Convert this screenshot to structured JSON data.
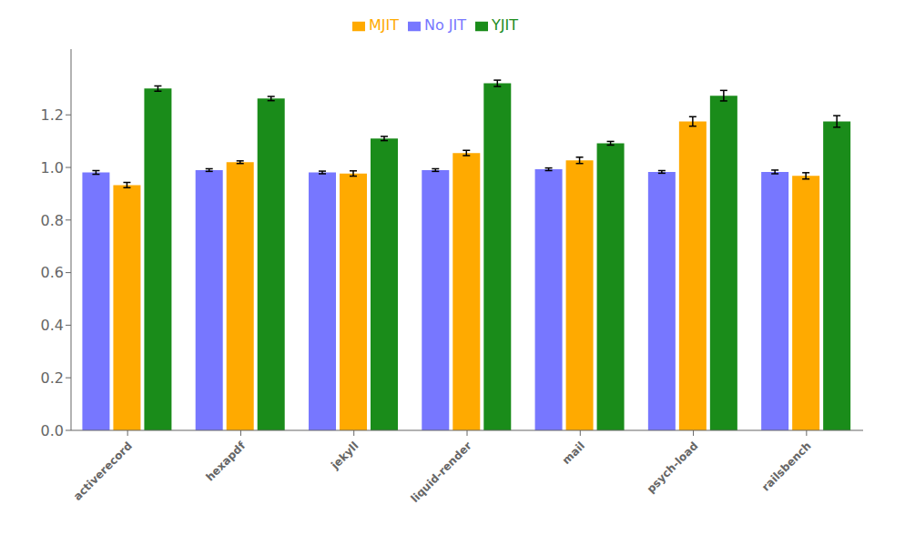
{
  "chart_data": {
    "type": "bar",
    "categories": [
      "activerecord",
      "hexapdf",
      "jekyll",
      "liquid-render",
      "mail",
      "psych-load",
      "railsbench"
    ],
    "series": [
      {
        "name": "No JIT",
        "color": "#7777ff",
        "values": [
          0.981,
          0.99,
          0.981,
          0.99,
          0.993,
          0.983,
          0.983
        ],
        "errors": [
          0.007,
          0.005,
          0.005,
          0.005,
          0.005,
          0.005,
          0.007
        ]
      },
      {
        "name": "MJIT",
        "color": "#ffaa00",
        "values": [
          0.933,
          1.02,
          0.977,
          1.055,
          1.027,
          1.175,
          0.968
        ],
        "errors": [
          0.01,
          0.005,
          0.01,
          0.01,
          0.012,
          0.018,
          0.012
        ]
      },
      {
        "name": "YJIT",
        "color": "#1a8c1a",
        "values": [
          1.3,
          1.262,
          1.11,
          1.32,
          1.092,
          1.273,
          1.175
        ],
        "errors": [
          0.01,
          0.008,
          0.008,
          0.012,
          0.007,
          0.02,
          0.022
        ]
      }
    ],
    "ylim": [
      0.0,
      1.45
    ],
    "yticks": [
      {
        "value": 0,
        "label": "0.0"
      },
      0.2,
      0.4,
      0.6,
      0.8,
      {
        "value": 1,
        "label": "1.0"
      },
      1.2
    ],
    "grid": false,
    "legend": "top"
  }
}
